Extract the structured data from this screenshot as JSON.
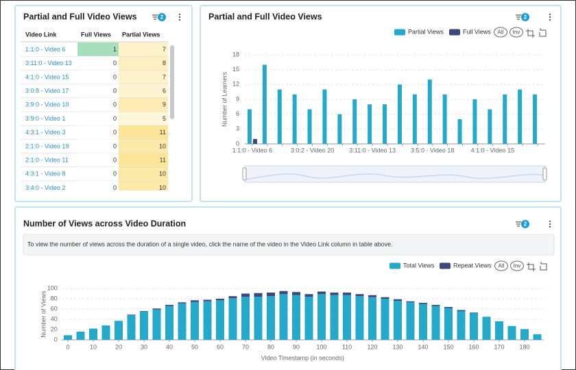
{
  "panels": [
    {
      "title": "Partial and Full Video Views",
      "filter_count": 2
    },
    {
      "title": "Partial and Full Video Views",
      "filter_count": 2
    },
    {
      "title": "Number of Views across Video Duration",
      "filter_count": 2
    }
  ],
  "table": {
    "columns": [
      "Video Link",
      "Full Views",
      "Partial Views"
    ],
    "rows": [
      [
        "1:1:0 - Video 6",
        1,
        7
      ],
      [
        "3:11:0 - Video 13",
        0,
        8
      ],
      [
        "4:1:0 - Video 15",
        0,
        7
      ],
      [
        "3:0:8 - Video 17",
        0,
        6
      ],
      [
        "3:9:0 - Video 10",
        0,
        9
      ],
      [
        "3:9:0 - Video 1",
        0,
        5
      ],
      [
        "4:3:1 - Video 3",
        0,
        11
      ],
      [
        "2:1:0 - Video 19",
        0,
        10
      ],
      [
        "2:1:0 - Video 11",
        0,
        11
      ],
      [
        "4:3:1 - Video 8",
        0,
        10
      ],
      [
        "3:4:0 - Video 2",
        0,
        10
      ]
    ]
  },
  "info_text": "To view the number of views across the duration of a single video, click the name of the video in the Video Link column in table above.",
  "buttons": [
    "All",
    "Inv"
  ],
  "chart_data": [
    {
      "type": "bar",
      "ylabel": "Number of Learners",
      "categories": [
        "1:1:0 - Video 6",
        null,
        null,
        null,
        "3:0:2 - Video 20",
        null,
        null,
        null,
        "3:11:0 - Video 13",
        null,
        null,
        null,
        "3:5:0 - Video 18",
        null,
        null,
        null,
        "4:1:0 - Video 15",
        null,
        null,
        null
      ],
      "series": [
        {
          "name": "Partial Views",
          "color": "#25a9cb",
          "values": [
            7,
            16,
            11,
            10,
            7,
            11,
            6,
            9,
            8,
            8,
            12,
            10,
            13,
            10,
            5,
            9,
            7,
            10,
            11,
            10
          ]
        },
        {
          "name": "Full Views",
          "color": "#3d4779",
          "values": [
            1,
            0,
            0,
            0,
            0,
            0,
            0,
            0,
            0,
            0,
            0,
            0,
            0,
            0,
            0,
            0,
            0,
            0,
            0,
            0
          ]
        }
      ],
      "ylim": [
        0,
        18
      ],
      "yticks": [
        0,
        3,
        6,
        9,
        12,
        15,
        18
      ],
      "grid": true
    },
    {
      "type": "stacked_bar",
      "xlabel": "Video Timestamp (in seconds)",
      "ylabel": "Number of Views",
      "x": [
        0,
        5,
        10,
        15,
        20,
        25,
        30,
        35,
        40,
        45,
        50,
        55,
        60,
        65,
        70,
        75,
        80,
        85,
        90,
        95,
        100,
        105,
        110,
        115,
        120,
        125,
        130,
        135,
        140,
        145,
        150,
        155,
        160,
        165,
        170,
        175,
        180,
        185
      ],
      "series": [
        {
          "name": "Total Views",
          "color": "#25a9cb",
          "values": [
            9,
            16,
            22,
            28,
            37,
            48,
            55,
            59,
            66,
            71,
            74,
            75,
            77,
            81,
            84,
            84,
            85,
            89,
            87,
            84,
            89,
            87,
            87,
            85,
            83,
            80,
            76,
            73,
            70,
            66,
            62,
            56,
            52,
            45,
            36,
            27,
            21,
            11
          ]
        },
        {
          "name": "Repeat Views",
          "color": "#3d4779",
          "values": [
            0,
            0,
            0,
            0,
            0,
            1,
            1,
            2,
            2,
            2,
            3,
            3,
            3,
            4,
            6,
            7,
            7,
            6,
            6,
            5,
            5,
            5,
            5,
            4,
            4,
            3,
            3,
            2,
            2,
            2,
            2,
            2,
            1,
            0,
            0,
            0,
            0,
            0
          ]
        }
      ],
      "xlim": [
        -2.5,
        187.5
      ],
      "xticks": [
        0,
        10,
        20,
        30,
        40,
        50,
        60,
        70,
        80,
        90,
        100,
        110,
        120,
        130,
        140,
        150,
        160,
        170,
        180
      ],
      "ylim": [
        0,
        100
      ],
      "yticks": [
        0,
        20,
        40,
        60,
        80,
        100
      ],
      "grid": true
    }
  ]
}
